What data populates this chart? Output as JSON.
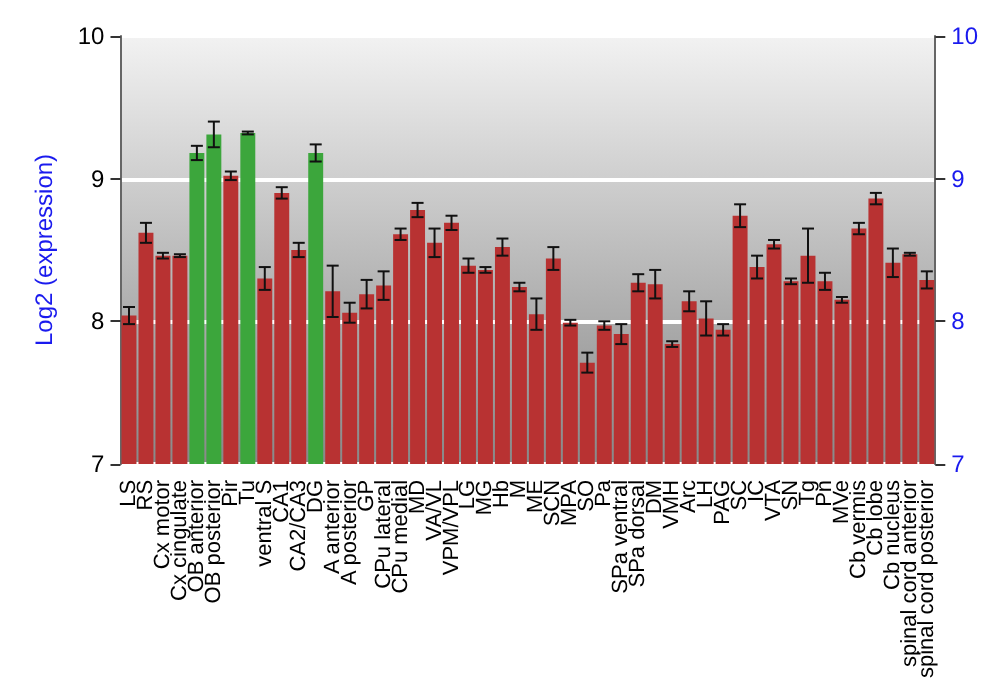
{
  "chart_data": {
    "type": "bar",
    "ylabel": "Log2 (expression)",
    "categories": [
      "LS",
      "RS",
      "Cx motor",
      "Cx cingulate",
      "OB anterior",
      "OB posterior",
      "Pir",
      "Tu",
      "ventral S",
      "CA1",
      "CA2/CA3",
      "DG",
      "A anterior",
      "A posterior",
      "GP",
      "CPu lateral",
      "CPu medial",
      "MD",
      "VA/VL",
      "VPM/VPL",
      "LG",
      "MG",
      "Hb",
      "M",
      "ME",
      "SCN",
      "MPA",
      "SO",
      "Pa",
      "SPa ventral",
      "SPa dorsal",
      "DM",
      "VMH",
      "Arc",
      "LH",
      "PAG",
      "SC",
      "IC",
      "VTA",
      "SN",
      "Tg",
      "Pn",
      "MVe",
      "Cb vermis",
      "Cb lobe",
      "Cb nucleus",
      "spinal cord anterior",
      "spinal cord posterior"
    ],
    "values": [
      8.04,
      8.62,
      8.46,
      8.46,
      9.18,
      9.31,
      9.02,
      9.32,
      8.3,
      8.9,
      8.5,
      9.18,
      8.21,
      8.06,
      8.19,
      8.25,
      8.61,
      8.78,
      8.55,
      8.69,
      8.39,
      8.36,
      8.52,
      8.24,
      8.05,
      8.44,
      7.99,
      7.71,
      7.97,
      7.91,
      8.27,
      8.26,
      7.84,
      8.14,
      8.02,
      7.94,
      8.74,
      8.38,
      8.54,
      8.28,
      8.46,
      8.28,
      8.15,
      8.65,
      8.86,
      8.41,
      8.47,
      8.29
    ],
    "errors": [
      0.06,
      0.07,
      0.02,
      0.01,
      0.05,
      0.09,
      0.03,
      0.01,
      0.08,
      0.04,
      0.05,
      0.06,
      0.18,
      0.07,
      0.1,
      0.1,
      0.04,
      0.05,
      0.1,
      0.05,
      0.05,
      0.02,
      0.06,
      0.03,
      0.11,
      0.08,
      0.02,
      0.07,
      0.03,
      0.07,
      0.06,
      0.1,
      0.02,
      0.07,
      0.12,
      0.04,
      0.08,
      0.08,
      0.03,
      0.02,
      0.19,
      0.06,
      0.02,
      0.04,
      0.04,
      0.1,
      0.01,
      0.06
    ],
    "colors": [
      "#b83232",
      "#b83232",
      "#b83232",
      "#b83232",
      "#3ca63c",
      "#3ca63c",
      "#b83232",
      "#3ca63c",
      "#b83232",
      "#b83232",
      "#b83232",
      "#3ca63c",
      "#b83232",
      "#b83232",
      "#b83232",
      "#b83232",
      "#b83232",
      "#b83232",
      "#b83232",
      "#b83232",
      "#b83232",
      "#b83232",
      "#b83232",
      "#b83232",
      "#b83232",
      "#b83232",
      "#b83232",
      "#b83232",
      "#b83232",
      "#b83232",
      "#b83232",
      "#b83232",
      "#b83232",
      "#b83232",
      "#b83232",
      "#b83232",
      "#b83232",
      "#b83232",
      "#b83232",
      "#b83232",
      "#b83232",
      "#b83232",
      "#b83232",
      "#b83232",
      "#b83232",
      "#b83232",
      "#b83232",
      "#b83232"
    ],
    "ylim": [
      7,
      10
    ],
    "yticks": [
      7,
      8,
      9,
      10
    ],
    "y2lim": [
      7,
      10
    ],
    "y2ticks": [
      7,
      8,
      9,
      10
    ],
    "grid": "y"
  }
}
